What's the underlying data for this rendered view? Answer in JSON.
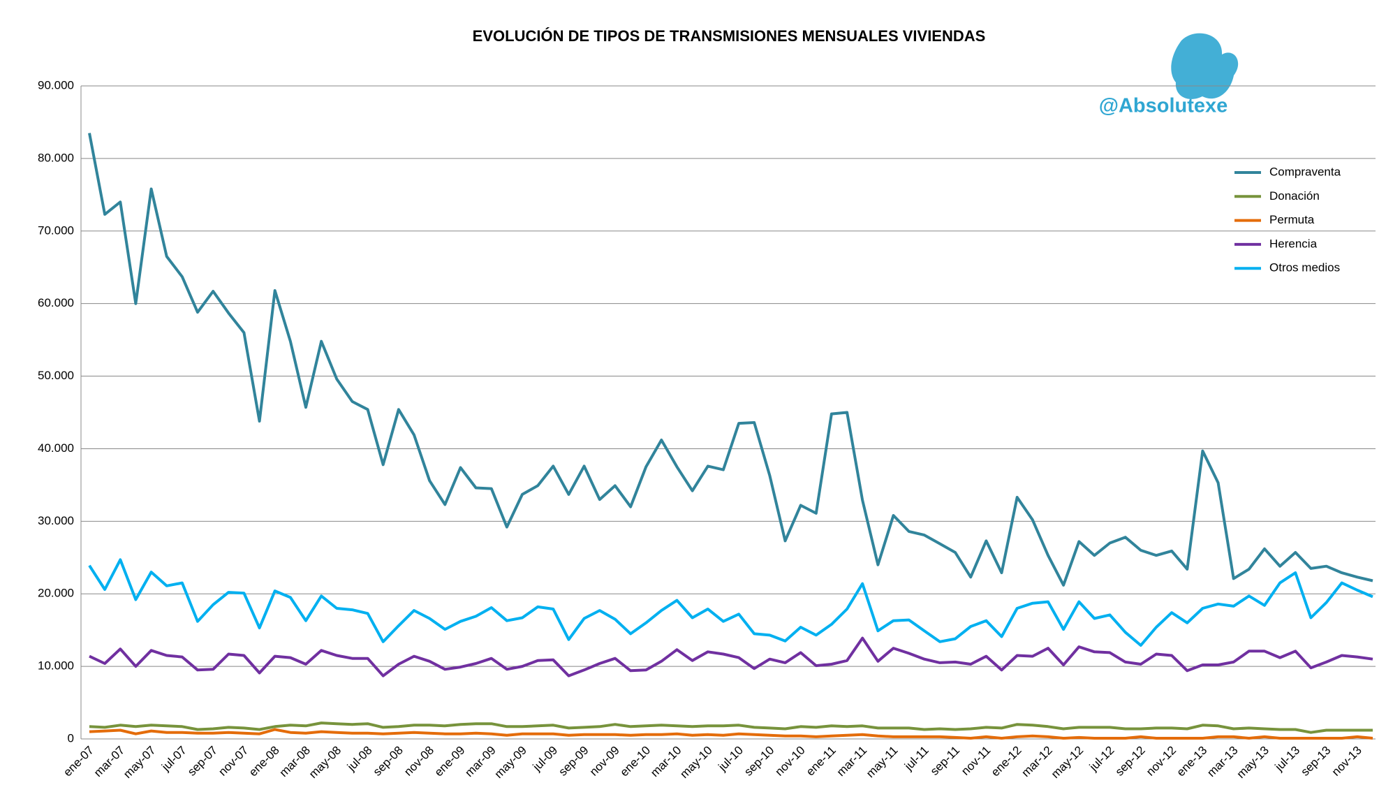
{
  "chart_data": {
    "type": "line",
    "title": "EVOLUCIÓN DE TIPOS DE TRANSMISIONES MENSUALES VIVIENDAS",
    "watermark": "@Absolutexe",
    "categories": [
      "ene-07",
      null,
      "mar-07",
      null,
      "may-07",
      null,
      "jul-07",
      null,
      "sep-07",
      null,
      "nov-07",
      null,
      "ene-08",
      null,
      "mar-08",
      null,
      "may-08",
      null,
      "jul-08",
      null,
      "sep-08",
      null,
      "nov-08",
      null,
      "ene-09",
      null,
      "mar-09",
      null,
      "may-09",
      null,
      "jul-09",
      null,
      "sep-09",
      null,
      "nov-09",
      null,
      "ene-10",
      null,
      "mar-10",
      null,
      "may-10",
      null,
      "jul-10",
      null,
      "sep-10",
      null,
      "nov-10",
      null,
      "ene-11",
      null,
      "mar-11",
      null,
      "may-11",
      null,
      "jul-11",
      null,
      "sep-11",
      null,
      "nov-11",
      null,
      "ene-12",
      null,
      "mar-12",
      null,
      "may-12",
      null,
      "jul-12",
      null,
      "sep-12",
      null,
      "nov-12",
      null,
      "ene-13",
      null,
      "mar-13",
      null,
      "may-13",
      null,
      "jul-13",
      null,
      "sep-13",
      null,
      "nov-13",
      null
    ],
    "series": [
      {
        "name": "Compraventa",
        "color": "#31849b",
        "values": [
          83500,
          72300,
          74000,
          60000,
          75800,
          66500,
          63700,
          58800,
          61700,
          58700,
          56000,
          43800,
          61800,
          54800,
          45700,
          54800,
          49600,
          46500,
          45400,
          37800,
          45400,
          41900,
          35600,
          32300,
          37400,
          34600,
          34500,
          29200,
          33700,
          34900,
          37600,
          33700,
          37600,
          33000,
          34900,
          32000,
          37500,
          41200,
          37500,
          34200,
          37600,
          37100,
          43500,
          43600,
          36300,
          27300,
          32200,
          31100,
          44800,
          45000,
          32900,
          24000,
          30800,
          28600,
          28100,
          26900,
          25700,
          22300,
          27300,
          22900,
          33300,
          30200,
          25300,
          21200,
          27200,
          25300,
          27000,
          27800,
          26000,
          25300,
          25900,
          23400,
          39700,
          35300,
          22100,
          23400,
          26200,
          23800,
          25700,
          23500,
          23800,
          22900,
          22300,
          21800
        ]
      },
      {
        "name": "Donación",
        "color": "#77933c",
        "values": [
          1700,
          1600,
          1900,
          1700,
          1900,
          1800,
          1700,
          1300,
          1400,
          1600,
          1500,
          1300,
          1700,
          1900,
          1800,
          2200,
          2100,
          2000,
          2100,
          1600,
          1700,
          1900,
          1900,
          1800,
          2000,
          2100,
          2100,
          1700,
          1700,
          1800,
          1900,
          1500,
          1600,
          1700,
          2000,
          1700,
          1800,
          1900,
          1800,
          1700,
          1800,
          1800,
          1900,
          1600,
          1500,
          1400,
          1700,
          1600,
          1800,
          1700,
          1800,
          1500,
          1500,
          1500,
          1300,
          1400,
          1300,
          1400,
          1600,
          1500,
          2000,
          1900,
          1700,
          1400,
          1600,
          1600,
          1600,
          1400,
          1400,
          1500,
          1500,
          1400,
          1900,
          1800,
          1400,
          1500,
          1400,
          1300,
          1300,
          900,
          1200,
          1200,
          1200,
          1200
        ]
      },
      {
        "name": "Permuta",
        "color": "#e46c0a",
        "values": [
          1000,
          1100,
          1200,
          700,
          1100,
          900,
          900,
          800,
          800,
          900,
          800,
          700,
          1300,
          900,
          800,
          1000,
          900,
          800,
          800,
          700,
          800,
          900,
          800,
          700,
          700,
          800,
          700,
          500,
          700,
          700,
          700,
          500,
          600,
          600,
          600,
          500,
          600,
          600,
          700,
          500,
          600,
          500,
          700,
          600,
          500,
          400,
          400,
          300,
          400,
          500,
          600,
          400,
          300,
          300,
          300,
          300,
          200,
          100,
          300,
          100,
          300,
          400,
          300,
          100,
          200,
          100,
          100,
          100,
          300,
          100,
          100,
          100,
          100,
          300,
          300,
          100,
          300,
          100,
          100,
          100,
          100,
          100,
          300,
          100
        ]
      },
      {
        "name": "Herencia",
        "color": "#7030a0",
        "values": [
          11400,
          10400,
          12400,
          10000,
          12200,
          11500,
          11300,
          9500,
          9600,
          11700,
          11500,
          9100,
          11400,
          11200,
          10300,
          12200,
          11500,
          11100,
          11100,
          8700,
          10300,
          11400,
          10700,
          9600,
          9900,
          10400,
          11100,
          9600,
          10000,
          10800,
          10900,
          8700,
          9500,
          10400,
          11100,
          9400,
          9500,
          10700,
          12300,
          10800,
          12000,
          11700,
          11200,
          9700,
          11000,
          10500,
          11900,
          10100,
          10300,
          10800,
          13900,
          10700,
          12500,
          11800,
          11000,
          10500,
          10600,
          10300,
          11400,
          9500,
          11500,
          11400,
          12500,
          10200,
          12700,
          12000,
          11900,
          10600,
          10300,
          11700,
          11500,
          9400,
          10200,
          10200,
          10600,
          12100,
          12100,
          11200,
          12100,
          9800,
          10600,
          11500,
          11300,
          11000
        ]
      },
      {
        "name": "Otros medios",
        "color": "#00b0f0",
        "values": [
          23900,
          20600,
          24700,
          19200,
          23000,
          21100,
          21500,
          16200,
          18500,
          20200,
          20100,
          15300,
          20400,
          19500,
          16300,
          19700,
          18000,
          17800,
          17300,
          13400,
          15600,
          17700,
          16600,
          15100,
          16200,
          16900,
          18100,
          16300,
          16700,
          18200,
          17900,
          13700,
          16600,
          17700,
          16500,
          14500,
          16000,
          17700,
          19100,
          16700,
          17900,
          16200,
          17200,
          14500,
          14300,
          13500,
          15400,
          14300,
          15800,
          17900,
          21400,
          14900,
          16300,
          16400,
          14900,
          13400,
          13800,
          15500,
          16300,
          14100,
          18000,
          18700,
          18900,
          15100,
          18900,
          16600,
          17100,
          14700,
          12900,
          15400,
          17400,
          16000,
          18000,
          18600,
          18300,
          19700,
          18400,
          21500,
          22900,
          16700,
          18800,
          21500,
          20500,
          19600
        ]
      }
    ],
    "ylim": [
      0,
      90000
    ],
    "yticks": [
      0,
      {
        "value": 10000,
        "label": "10.000"
      },
      {
        "value": 20000,
        "label": "20.000"
      },
      {
        "value": 30000,
        "label": "30.000"
      },
      {
        "value": 40000,
        "label": "40.000"
      },
      {
        "value": 50000,
        "label": "50.000"
      },
      {
        "value": 60000,
        "label": "60.000"
      },
      {
        "value": 70000,
        "label": "70.000"
      },
      {
        "value": 80000,
        "label": "80.000"
      },
      {
        "value": 90000,
        "label": "90.000"
      }
    ],
    "grid": true,
    "legend": "right"
  }
}
